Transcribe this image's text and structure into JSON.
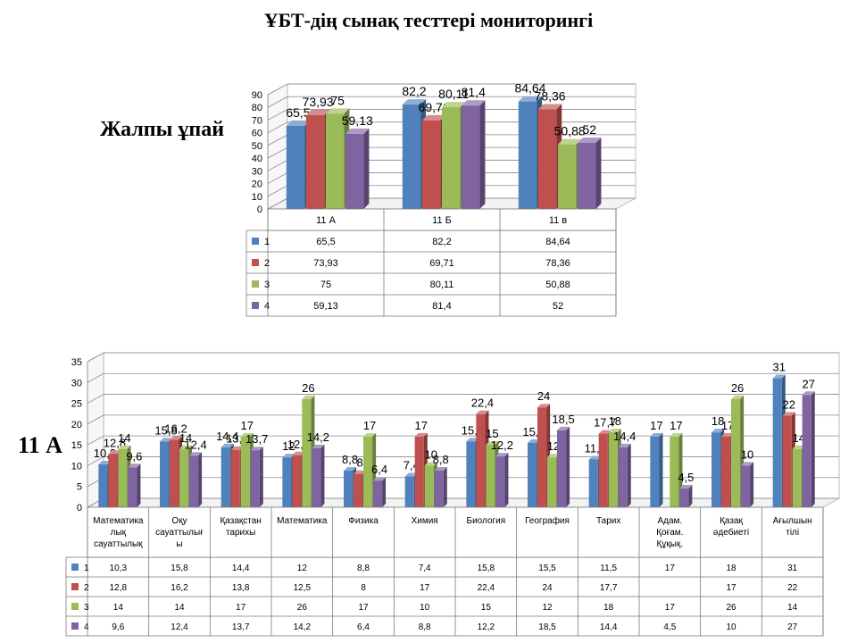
{
  "page": {
    "title": "ҰБТ-дің сынақ тесттері мониторингі"
  },
  "colors": {
    "s1": "#4F81BD",
    "s2": "#C0504D",
    "s3": "#9BBB59",
    "s4": "#8064A2"
  },
  "chart_data": [
    {
      "type": "bar",
      "side_label": "Жалпы ұпай",
      "categories": [
        "11 А",
        "11 Б",
        "11 в"
      ],
      "series": [
        {
          "name": "1",
          "values": [
            65.5,
            82.2,
            84.64
          ]
        },
        {
          "name": "2",
          "values": [
            73.93,
            69.71,
            78.36
          ]
        },
        {
          "name": "3",
          "values": [
            75,
            80.11,
            50.88
          ]
        },
        {
          "name": "4",
          "values": [
            59.13,
            81.4,
            52
          ]
        }
      ],
      "value_labels": [
        [
          "65,5",
          "82,2",
          "84,64"
        ],
        [
          "73,93",
          "69,71",
          "78,36"
        ],
        [
          "75",
          "80,11",
          "50,88"
        ],
        [
          "59,13",
          "81,4",
          "52"
        ]
      ],
      "table_values": [
        [
          "65,5",
          "82,2",
          "84,64"
        ],
        [
          "73,93",
          "69,71",
          "78,36"
        ],
        [
          "75",
          "80,11",
          "50,88"
        ],
        [
          "59,13",
          "81,4",
          "52"
        ]
      ],
      "yticks": [
        "0",
        "10",
        "20",
        "30",
        "40",
        "50",
        "60",
        "70",
        "80",
        "90"
      ],
      "ylim": [
        0,
        90
      ],
      "grid": true,
      "legend": "data table below"
    },
    {
      "type": "bar",
      "side_label": "11 А",
      "categories": [
        [
          "Математика",
          "лық",
          "сауаттылық"
        ],
        [
          "Оқу",
          "сауаттылығ",
          "ы"
        ],
        [
          "Қазақстан",
          "тарихы"
        ],
        [
          "Математика"
        ],
        [
          "Физика"
        ],
        [
          "Химия"
        ],
        [
          "Биология"
        ],
        [
          "География"
        ],
        [
          "Тарих"
        ],
        [
          "Адам.",
          "Қоғам.",
          "Құқық."
        ],
        [
          "Қазақ",
          "әдебиеті"
        ],
        [
          "Ағылшын",
          "тілі"
        ]
      ],
      "series": [
        {
          "name": "1",
          "values": [
            10.3,
            15.8,
            14.4,
            12,
            8.8,
            7.4,
            15.8,
            15.5,
            11.5,
            17,
            18,
            31
          ]
        },
        {
          "name": "2",
          "values": [
            12.8,
            16.2,
            13.8,
            12.5,
            8,
            17,
            22.4,
            24,
            17.7,
            null,
            17,
            22
          ]
        },
        {
          "name": "3",
          "values": [
            14,
            14,
            17,
            26,
            17,
            10,
            15,
            12,
            18,
            17,
            26,
            14
          ]
        },
        {
          "name": "4",
          "values": [
            9.6,
            12.4,
            13.7,
            14.2,
            6.4,
            8.8,
            12.2,
            18.5,
            14.4,
            4.5,
            10,
            27
          ]
        }
      ],
      "value_labels": [
        [
          "10,3",
          "15,8",
          "14,4",
          "12",
          "8,8",
          "7,4",
          "15,8",
          "15,5",
          "11,5",
          "17",
          "18",
          "31"
        ],
        [
          "12,8",
          "16,2",
          "13,8",
          "12,5",
          "8",
          "17",
          "22,4",
          "24",
          "17,7",
          "",
          "17",
          "22"
        ],
        [
          "14",
          "14",
          "17",
          "26",
          "17",
          "10",
          "15",
          "12",
          "18",
          "17",
          "26",
          "14"
        ],
        [
          "9,6",
          "12,4",
          "13,7",
          "14,2",
          "6,4",
          "8,8",
          "12,2",
          "18,5",
          "14,4",
          "4,5",
          "10",
          "27"
        ]
      ],
      "table_values": [
        [
          "10,3",
          "15,8",
          "14,4",
          "12",
          "8,8",
          "7,4",
          "15,8",
          "15,5",
          "11,5",
          "17",
          "18",
          "31"
        ],
        [
          "12,8",
          "16,2",
          "13,8",
          "12,5",
          "8",
          "17",
          "22,4",
          "24",
          "17,7",
          "",
          "17",
          "22"
        ],
        [
          "14",
          "14",
          "17",
          "26",
          "17",
          "10",
          "15",
          "12",
          "18",
          "17",
          "26",
          "14"
        ],
        [
          "9,6",
          "12,4",
          "13,7",
          "14,2",
          "6,4",
          "8,8",
          "12,2",
          "18,5",
          "14,4",
          "4,5",
          "10",
          "27"
        ]
      ],
      "yticks": [
        "0",
        "5",
        "10",
        "15",
        "20",
        "25",
        "30",
        "35"
      ],
      "ylim": [
        0,
        35
      ],
      "grid": true,
      "legend": "data table below"
    }
  ]
}
